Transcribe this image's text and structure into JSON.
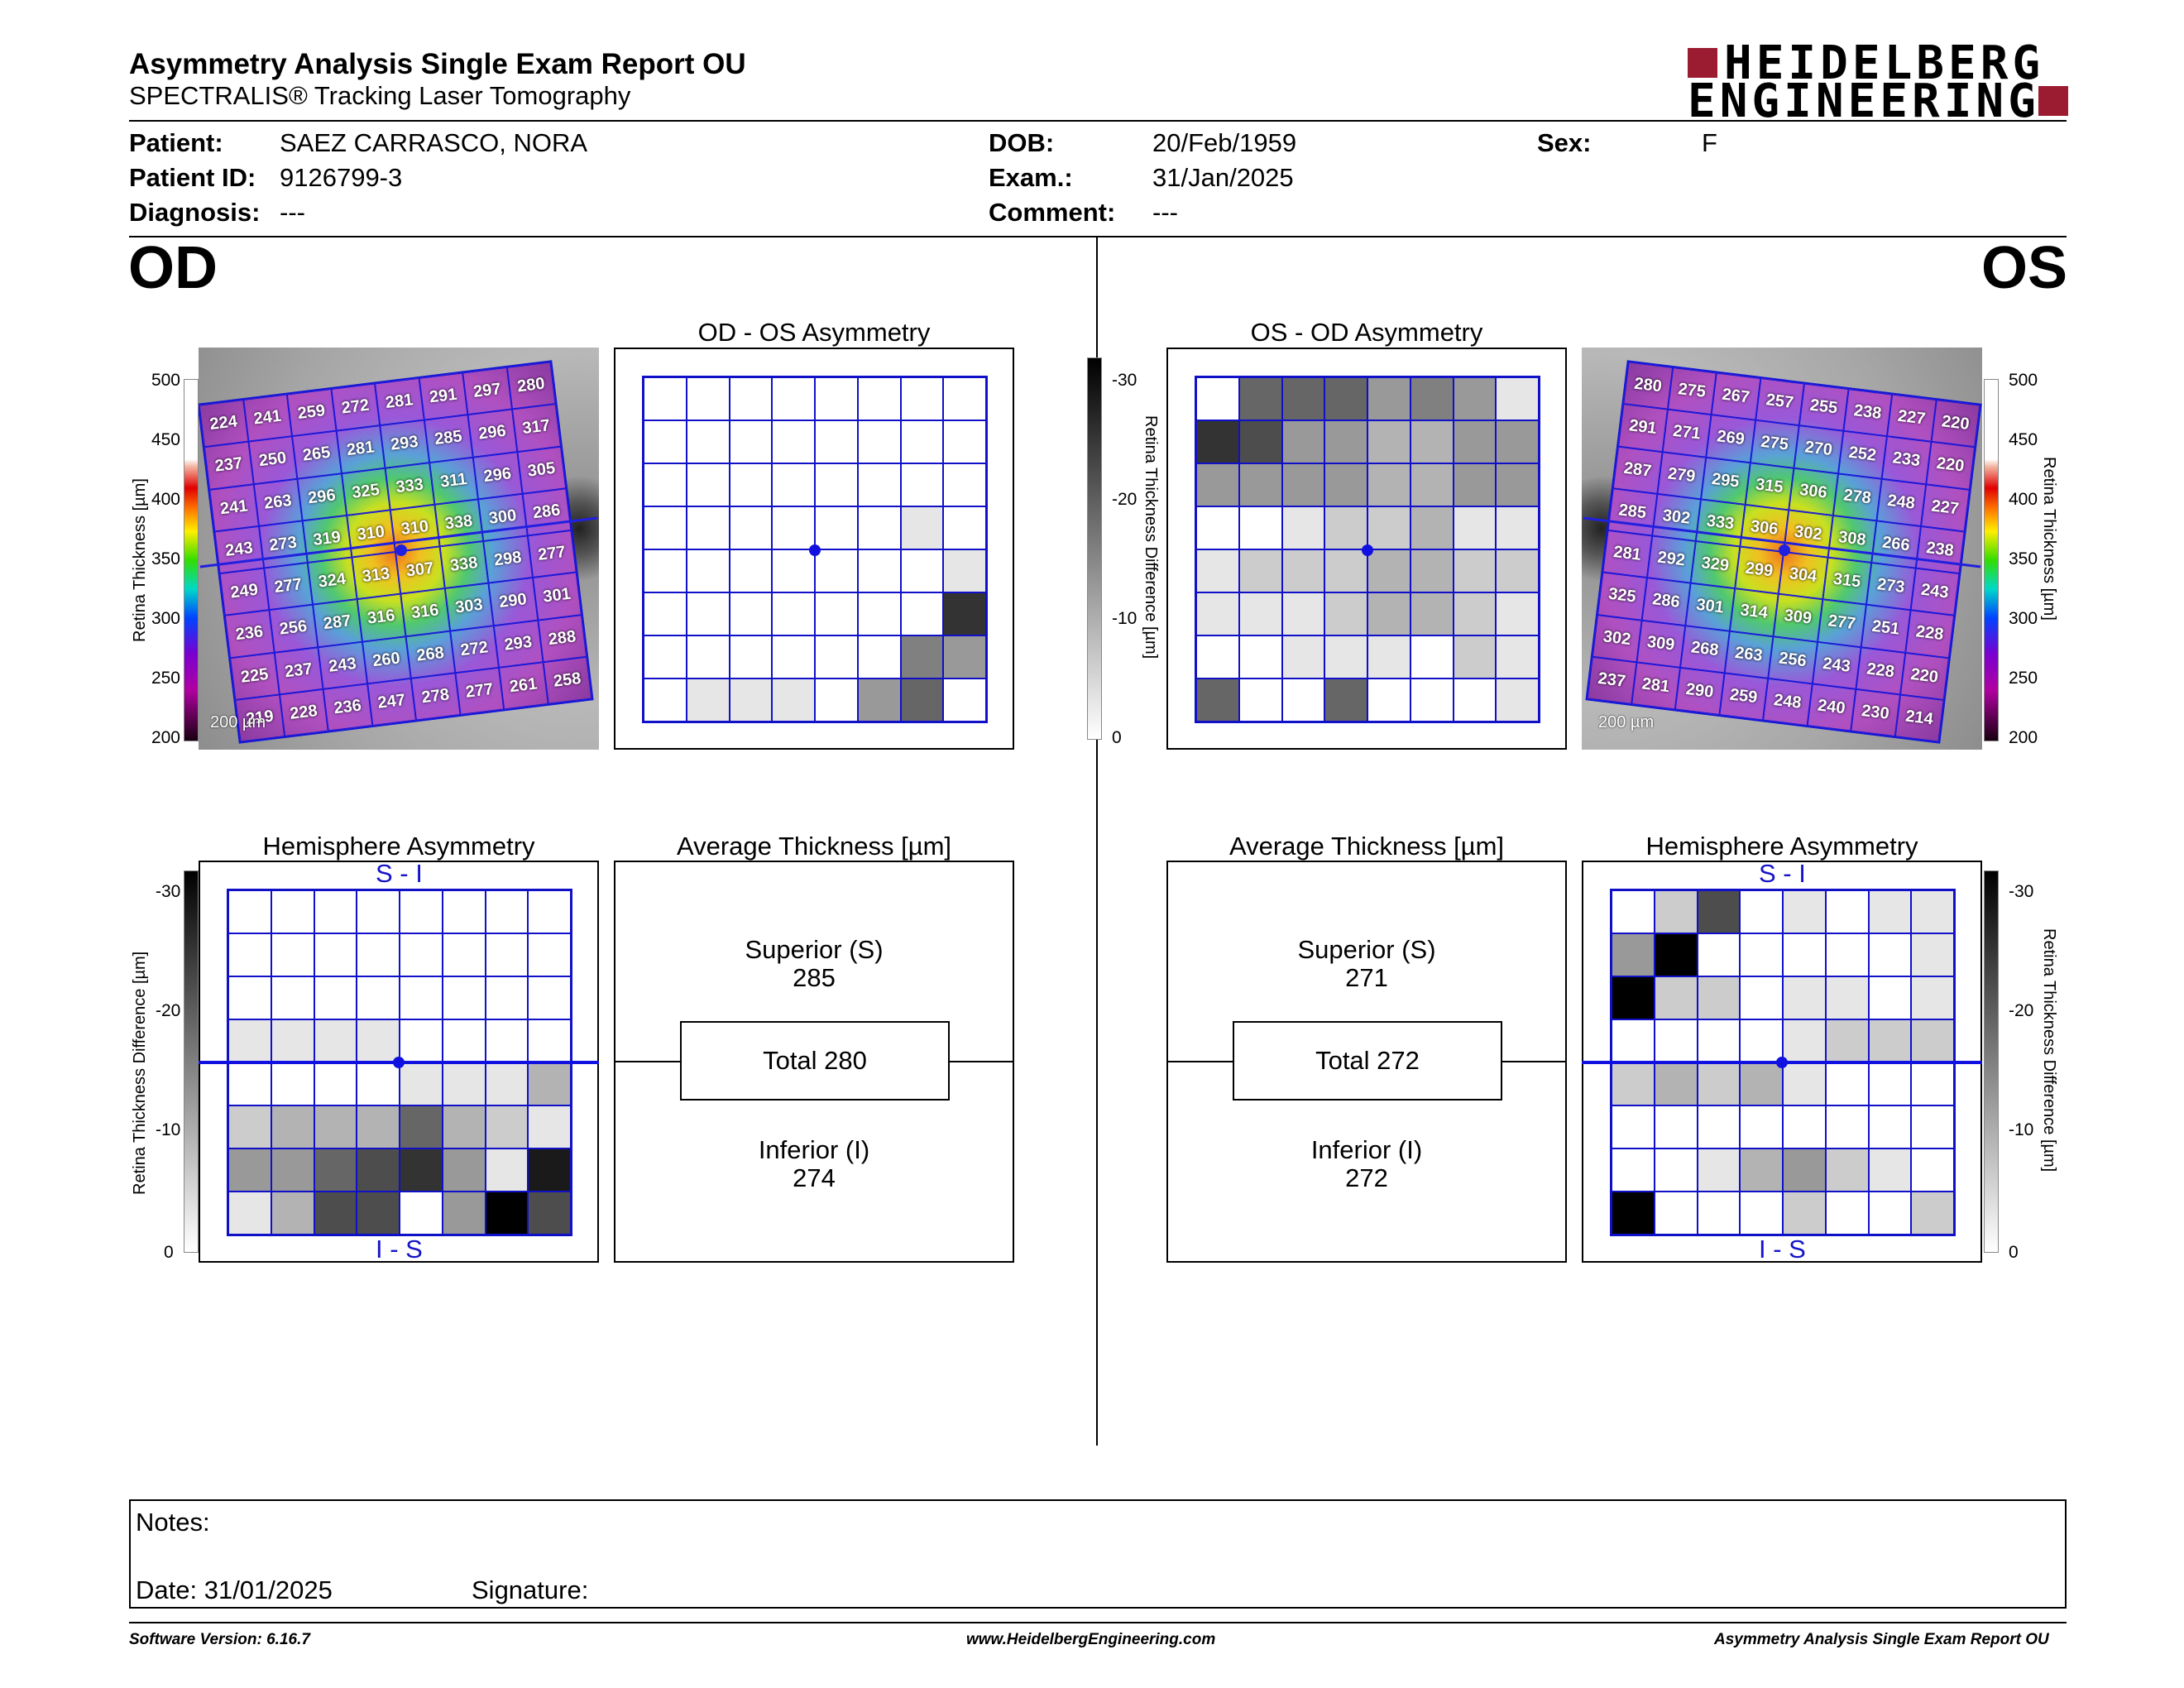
{
  "header": {
    "title": "Asymmetry Analysis Single Exam Report OU",
    "subtitle": "SPECTRALIS® Tracking Laser Tomography",
    "logo_line1": "HEIDELBERG",
    "logo_line2": "ENGINEERING",
    "logo_color": "#9b1b30"
  },
  "patient": {
    "patient_label": "Patient:",
    "patient_value": "SAEZ CARRASCO, NORA",
    "id_label": "Patient ID:",
    "id_value": "9126799-3",
    "diagnosis_label": "Diagnosis:",
    "diagnosis_value": "---",
    "dob_label": "DOB:",
    "dob_value": "20/Feb/1959",
    "exam_label": "Exam.:",
    "exam_value": "31/Jan/2025",
    "comment_label": "Comment:",
    "comment_value": "---",
    "sex_label": "Sex:",
    "sex_value": "F"
  },
  "od": {
    "eye_label": "OD",
    "asym_title": "OD - OS Asymmetry",
    "hemi_title": "Hemisphere Asymmetry",
    "avg_title": "Average Thickness [µm]",
    "superior_label": "Superior (S)",
    "superior_value": "285",
    "total_label": "Total 280",
    "inferior_label": "Inferior (I)",
    "inferior_value": "274",
    "scale_label": "200 µm",
    "si_label": "S - I",
    "is_label": "I - S",
    "thickness_ticks": [
      "500",
      "450",
      "400",
      "350",
      "300",
      "250",
      "200"
    ],
    "thickness_axis_label": "Retina  Thickness [µm]",
    "hemi_ticks": [
      "-30",
      "-20",
      "-10",
      "0"
    ],
    "hemi_axis_label": "Retina Thickness Difference [µm]",
    "thickness_grid": [
      [
        "224",
        "241",
        "259",
        "272",
        "281",
        "291",
        "297",
        "280"
      ],
      [
        "237",
        "250",
        "265",
        "281",
        "293",
        "285",
        "296",
        "317"
      ],
      [
        "241",
        "263",
        "296",
        "325",
        "333",
        "311",
        "296",
        "305"
      ],
      [
        "243",
        "273",
        "319",
        "310",
        "310",
        "338",
        "300",
        "286"
      ],
      [
        "249",
        "277",
        "324",
        "313",
        "307",
        "338",
        "298",
        "277"
      ],
      [
        "236",
        "256",
        "287",
        "316",
        "316",
        "303",
        "290",
        "301"
      ],
      [
        "225",
        "237",
        "243",
        "260",
        "268",
        "272",
        "293",
        "288"
      ],
      [
        "219",
        "228",
        "236",
        "247",
        "278",
        "277",
        "261",
        "258"
      ]
    ],
    "asym_grid": [
      [
        0,
        0,
        0,
        0,
        0,
        0,
        0,
        0
      ],
      [
        0,
        0,
        0,
        0,
        0,
        0,
        0,
        0
      ],
      [
        0,
        0,
        0,
        0,
        0,
        0,
        0,
        0
      ],
      [
        0,
        0,
        0,
        0,
        0,
        0,
        1,
        0
      ],
      [
        0,
        0,
        0,
        0,
        0,
        0,
        0,
        1
      ],
      [
        0,
        0,
        0,
        0,
        0,
        0,
        0,
        8
      ],
      [
        0,
        0,
        0,
        0,
        0,
        0,
        5,
        4
      ],
      [
        0,
        1,
        1,
        1,
        0,
        4,
        6,
        0
      ]
    ],
    "hemi_grid": [
      [
        0,
        0,
        0,
        0,
        0,
        0,
        0,
        0
      ],
      [
        0,
        0,
        0,
        0,
        0,
        0,
        0,
        0
      ],
      [
        0,
        0,
        0,
        0,
        0,
        0,
        0,
        0
      ],
      [
        1,
        1,
        1,
        1,
        0,
        0,
        0,
        0
      ],
      [
        0,
        0,
        0,
        0,
        1,
        1,
        1,
        3
      ],
      [
        2,
        3,
        3,
        3,
        6,
        3,
        2,
        1
      ],
      [
        4,
        4,
        6,
        7,
        8,
        4,
        1,
        9
      ],
      [
        1,
        3,
        7,
        7,
        0,
        4,
        10,
        7
      ]
    ]
  },
  "os": {
    "eye_label": "OS",
    "asym_title": "OS - OD Asymmetry",
    "hemi_title": "Hemisphere Asymmetry",
    "avg_title": "Average Thickness [µm]",
    "superior_label": "Superior (S)",
    "superior_value": "271",
    "total_label": "Total 272",
    "inferior_label": "Inferior (I)",
    "inferior_value": "272",
    "scale_label": "200 µm",
    "si_label": "S - I",
    "is_label": "I - S",
    "thickness_ticks": [
      "500",
      "450",
      "400",
      "350",
      "300",
      "250",
      "200"
    ],
    "thickness_axis_label": "Retina  Thickness [µm]",
    "diff_ticks": [
      "-30",
      "-20",
      "-10",
      "0"
    ],
    "diff_axis_label": "Retina Thickness Difference [µm]",
    "thickness_grid": [
      [
        "280",
        "275",
        "267",
        "257",
        "255",
        "238",
        "227",
        "220"
      ],
      [
        "291",
        "271",
        "269",
        "275",
        "270",
        "252",
        "233",
        "220"
      ],
      [
        "287",
        "279",
        "295",
        "315",
        "306",
        "278",
        "248",
        "227"
      ],
      [
        "285",
        "302",
        "333",
        "306",
        "302",
        "308",
        "266",
        "238"
      ],
      [
        "281",
        "292",
        "329",
        "299",
        "304",
        "315",
        "273",
        "243"
      ],
      [
        "325",
        "286",
        "301",
        "314",
        "309",
        "277",
        "251",
        "228"
      ],
      [
        "302",
        "309",
        "268",
        "263",
        "256",
        "243",
        "228",
        "220"
      ],
      [
        "237",
        "281",
        "290",
        "259",
        "248",
        "240",
        "230",
        "214"
      ]
    ],
    "asym_grid": [
      [
        0,
        6,
        6,
        6,
        4,
        5,
        4,
        1
      ],
      [
        8,
        7,
        4,
        4,
        3,
        3,
        4,
        4
      ],
      [
        4,
        4,
        4,
        4,
        3,
        3,
        4,
        4
      ],
      [
        0,
        0,
        1,
        2,
        2,
        3,
        1,
        1
      ],
      [
        1,
        2,
        2,
        2,
        3,
        3,
        2,
        2
      ],
      [
        1,
        1,
        1,
        2,
        3,
        3,
        2,
        1
      ],
      [
        0,
        0,
        1,
        1,
        1,
        0,
        2,
        1
      ],
      [
        6,
        0,
        0,
        6,
        0,
        0,
        0,
        1
      ]
    ],
    "hemi_grid": [
      [
        0,
        2,
        7,
        0,
        1,
        0,
        1,
        1
      ],
      [
        4,
        10,
        0,
        0,
        0,
        0,
        0,
        1
      ],
      [
        10,
        2,
        2,
        0,
        1,
        1,
        0,
        1
      ],
      [
        0,
        0,
        0,
        0,
        1,
        2,
        2,
        2
      ],
      [
        2,
        3,
        2,
        3,
        1,
        0,
        0,
        0
      ],
      [
        0,
        0,
        0,
        0,
        0,
        0,
        0,
        0
      ],
      [
        0,
        0,
        1,
        3,
        4,
        2,
        1,
        0
      ],
      [
        10,
        0,
        0,
        0,
        2,
        0,
        0,
        2
      ]
    ],
    "hemi_ticks": [
      "-30",
      "-20",
      "-10",
      "0"
    ],
    "hemi_axis_label": "Retina Thickness Difference [µm]"
  },
  "center_scale": {
    "ticks": [
      "-30",
      "-20",
      "-10",
      "0"
    ],
    "axis_label": "Retina Thickness Difference [µm]"
  },
  "notes": {
    "notes_label": "Notes:",
    "date_label": "Date: 31/01/2025",
    "signature_label": "Signature:"
  },
  "footer": {
    "software": "Software Version: 6.16.7",
    "website": "www.HeidelbergEngineering.com",
    "report": "Asymmetry Analysis Single Exam Report OU"
  }
}
